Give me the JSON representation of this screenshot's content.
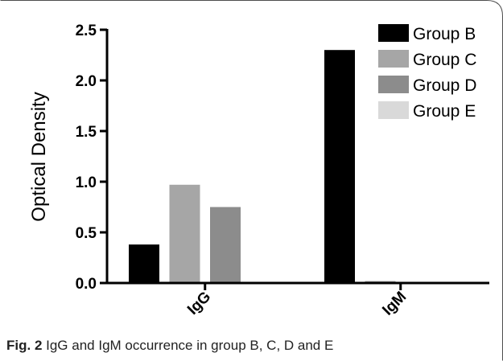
{
  "chart_data": {
    "type": "bar",
    "categories": [
      "IgG",
      "IgM"
    ],
    "series": [
      {
        "name": "Group B",
        "values": [
          0.38,
          2.3
        ],
        "color": "#000000"
      },
      {
        "name": "Group C",
        "values": [
          0.97,
          0.02
        ],
        "color": "#a6a6a6"
      },
      {
        "name": "Group D",
        "values": [
          0.75,
          0.0
        ],
        "color": "#8c8c8c"
      },
      {
        "name": "Group E",
        "values": [
          0.0,
          0.0
        ],
        "color": "#d9d9d9"
      }
    ],
    "ylabel": "Optical Density",
    "ylim": [
      0,
      2.5
    ],
    "yticks": [
      "0.0",
      "0.5",
      "1.0",
      "1.5",
      "2.0",
      "2.5"
    ],
    "legend": "top-right",
    "grid": false
  },
  "caption": {
    "label": "Fig. 2",
    "text": " IgG and IgM occurrence in group B, C, D and E"
  }
}
